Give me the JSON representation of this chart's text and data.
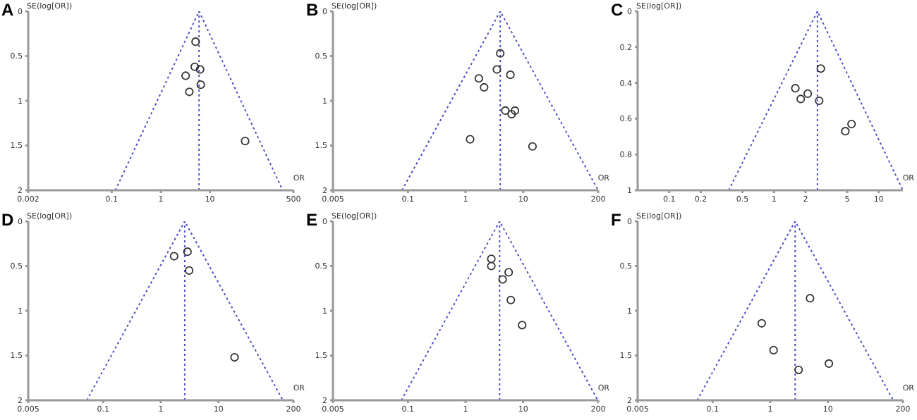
{
  "chart_data": [
    {
      "type": "scatter",
      "title": "A",
      "xlabel": "OR",
      "ylabel": "SE(log[OR])",
      "log": "x",
      "grid": false,
      "xlim": [
        0.002,
        500
      ],
      "xticks": [
        0.002,
        0.1,
        1,
        10,
        500
      ],
      "ylim": [
        2,
        0
      ],
      "yticks": [
        0,
        0.5,
        1,
        1.5,
        2
      ],
      "series": [
        {
          "marker": "circle",
          "color": "#333333",
          "x": [
            5.1,
            4.9,
            6.3,
            3.2,
            6.5,
            3.8,
            52
          ],
          "values": [
            0.34,
            0.62,
            0.65,
            0.72,
            0.82,
            0.9,
            1.45
          ]
        },
        {
          "type": "line",
          "line_style": "dotted",
          "marker": "none",
          "color": "#4a4ac8",
          "x": [
            0.119,
            6,
            302
          ],
          "values": [
            2,
            0,
            2
          ]
        }
      ],
      "ref_lines": [
        {
          "axis": "x",
          "value": 6,
          "line_style": "dotted",
          "color": "#4a4ac8"
        }
      ]
    },
    {
      "type": "scatter",
      "title": "B",
      "xlabel": "OR",
      "ylabel": "SE(log[OR])",
      "log": "x",
      "grid": false,
      "xlim": [
        0.005,
        200
      ],
      "xticks": [
        0.005,
        0.1,
        1,
        10,
        200
      ],
      "ylim": [
        2,
        0
      ],
      "yticks": [
        0,
        0.5,
        1,
        1.5,
        2
      ],
      "series": [
        {
          "marker": "circle",
          "color": "#333333",
          "x": [
            4.0,
            3.5,
            6.0,
            1.7,
            2.1,
            4.9,
            6.3,
            7.2,
            1.2,
            14.5
          ],
          "values": [
            0.47,
            0.65,
            0.71,
            0.75,
            0.85,
            1.11,
            1.15,
            1.11,
            1.43,
            1.51
          ]
        },
        {
          "type": "line",
          "line_style": "dotted",
          "marker": "none",
          "color": "#4a4ac8",
          "x": [
            0.079,
            4,
            200
          ],
          "values": [
            2,
            0,
            2
          ]
        }
      ],
      "ref_lines": [
        {
          "axis": "x",
          "value": 4,
          "line_style": "dotted",
          "color": "#4a4ac8"
        }
      ]
    },
    {
      "type": "scatter",
      "title": "C",
      "xlabel": "OR",
      "ylabel": "SE(log[OR])",
      "log": "x",
      "grid": false,
      "xlim": [
        0.05,
        17
      ],
      "xticks": [
        0.1,
        0.2,
        0.5,
        1,
        2,
        5,
        10
      ],
      "ylim": [
        1,
        0
      ],
      "yticks": [
        0,
        0.2,
        0.4,
        0.6,
        0.8,
        1
      ],
      "series": [
        {
          "marker": "circle",
          "color": "#333333",
          "x": [
            2.8,
            1.6,
            1.8,
            2.1,
            2.7,
            5.5,
            4.8
          ],
          "values": [
            0.32,
            0.43,
            0.49,
            0.46,
            0.5,
            0.63,
            0.67
          ]
        },
        {
          "type": "line",
          "line_style": "dotted",
          "marker": "none",
          "color": "#4a4ac8",
          "x": [
            0.37,
            2.6,
            17
          ],
          "values": [
            1,
            0,
            1
          ]
        }
      ],
      "ref_lines": [
        {
          "axis": "x",
          "value": 2.6,
          "line_style": "dotted",
          "color": "#4a4ac8"
        }
      ]
    },
    {
      "type": "scatter",
      "title": "D",
      "xlabel": "OR",
      "ylabel": "SE(log[OR])",
      "log": "x",
      "grid": false,
      "xlim": [
        0.005,
        200
      ],
      "xticks": [
        0.005,
        0.1,
        1,
        10,
        200
      ],
      "ylim": [
        2,
        0
      ],
      "yticks": [
        0,
        0.5,
        1,
        1.5,
        2
      ],
      "series": [
        {
          "marker": "circle",
          "color": "#333333",
          "x": [
            2.9,
            1.7,
            3.1,
            19
          ],
          "values": [
            0.34,
            0.39,
            0.55,
            1.52
          ]
        },
        {
          "type": "line",
          "line_style": "dotted",
          "marker": "none",
          "color": "#4a4ac8",
          "x": [
            0.052,
            2.6,
            131
          ],
          "values": [
            2,
            0,
            2
          ]
        }
      ],
      "ref_lines": [
        {
          "axis": "x",
          "value": 2.6,
          "line_style": "dotted",
          "color": "#4a4ac8"
        }
      ]
    },
    {
      "type": "scatter",
      "title": "E",
      "xlabel": "OR",
      "ylabel": "SE(log[OR])",
      "log": "x",
      "grid": false,
      "xlim": [
        0.005,
        200
      ],
      "xticks": [
        0.005,
        0.1,
        1,
        10,
        200
      ],
      "ylim": [
        2,
        0
      ],
      "yticks": [
        0,
        0.5,
        1,
        1.5,
        2
      ],
      "series": [
        {
          "marker": "circle",
          "color": "#333333",
          "x": [
            2.8,
            2.8,
            5.6,
            4.4,
            6.1,
            9.6
          ],
          "values": [
            0.42,
            0.5,
            0.57,
            0.65,
            0.88,
            1.16
          ]
        },
        {
          "type": "line",
          "line_style": "dotted",
          "marker": "none",
          "color": "#4a4ac8",
          "x": [
            0.077,
            3.9,
            197
          ],
          "values": [
            2,
            0,
            2
          ]
        }
      ],
      "ref_lines": [
        {
          "axis": "x",
          "value": 3.9,
          "line_style": "dotted",
          "color": "#4a4ac8"
        }
      ]
    },
    {
      "type": "scatter",
      "title": "F",
      "xlabel": "OR",
      "ylabel": "SE(log[OR])",
      "log": "x",
      "grid": false,
      "xlim": [
        0.005,
        200
      ],
      "xticks": [
        0.005,
        0.1,
        1,
        10,
        200
      ],
      "ylim": [
        2,
        0
      ],
      "yticks": [
        0,
        0.5,
        1,
        1.5,
        2
      ],
      "series": [
        {
          "marker": "circle",
          "color": "#333333",
          "x": [
            4.9,
            0.71,
            1.14,
            10.4,
            3.1
          ],
          "values": [
            0.86,
            1.14,
            1.44,
            1.59,
            1.66
          ]
        },
        {
          "type": "line",
          "line_style": "dotted",
          "marker": "none",
          "color": "#4a4ac8",
          "x": [
            0.054,
            2.7,
            136
          ],
          "values": [
            2,
            0,
            2
          ]
        }
      ],
      "ref_lines": [
        {
          "axis": "x",
          "value": 2.7,
          "line_style": "dotted",
          "color": "#4a4ac8"
        }
      ]
    }
  ]
}
